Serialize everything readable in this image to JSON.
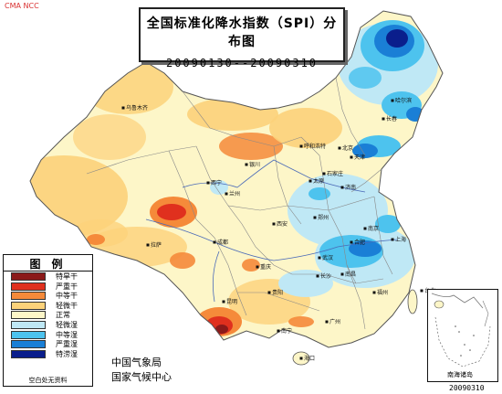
{
  "credit": "CMA NCC",
  "title": "全国标准化降水指数（SPI）分布图",
  "date_range": "20090130--20090310",
  "legend": {
    "title": "图例",
    "items": [
      {
        "label": "特旱干",
        "color": "#8b1a1a"
      },
      {
        "label": "严重干",
        "color": "#e0301e"
      },
      {
        "label": "中等干",
        "color": "#f58a3a"
      },
      {
        "label": "轻微干",
        "color": "#fcd27a"
      },
      {
        "label": "正常",
        "color": "#fdf6c8"
      },
      {
        "label": "轻微湿",
        "color": "#bfe8f5"
      },
      {
        "label": "中等湿",
        "color": "#4dc3ee"
      },
      {
        "label": "严重湿",
        "color": "#1a7fd6"
      },
      {
        "label": "特涝湿",
        "color": "#0a1e8c"
      }
    ],
    "note": "空白处无资料"
  },
  "agency": [
    "中国气象局",
    "国家气候中心"
  ],
  "inset_label": "南海诸岛",
  "issue_date": "20090310",
  "cities": [
    "乌鲁木齐",
    "哈尔滨",
    "长春",
    "呼和浩特",
    "北京",
    "天津",
    "石家庄",
    "太原",
    "济南",
    "银川",
    "西宁",
    "兰州",
    "西安",
    "郑州",
    "南京",
    "合肥",
    "上海",
    "拉萨",
    "成都",
    "武汉",
    "重庆",
    "贵阳",
    "长沙",
    "南昌",
    "福州",
    "台北",
    "昆明",
    "南宁",
    "广州",
    "海口"
  ]
}
